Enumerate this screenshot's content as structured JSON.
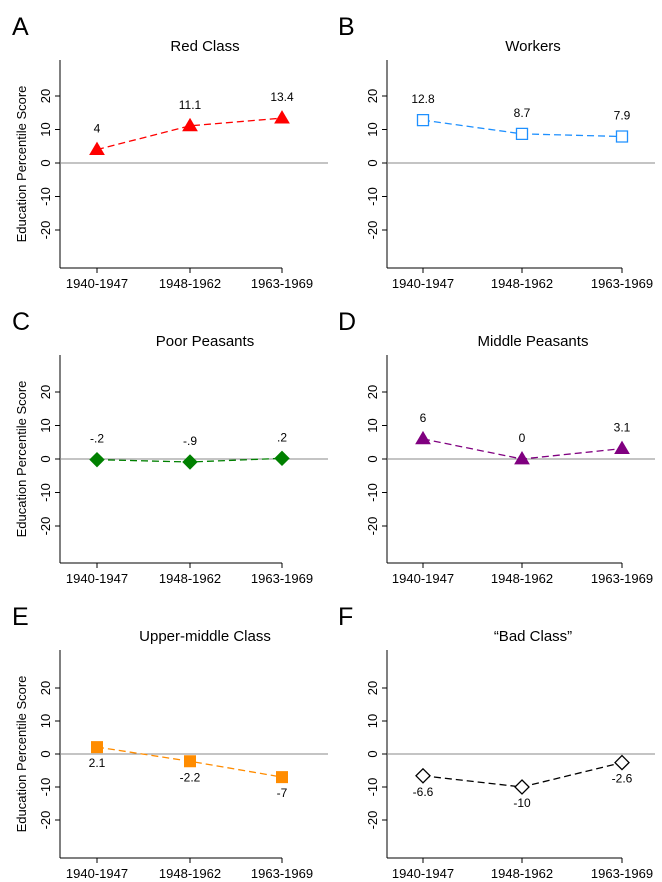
{
  "ylabel": "Education Percentile Score",
  "chart_data": [
    {
      "type": "line",
      "panel": "A",
      "title": "Red Class",
      "ylabel": "Education Percentile Score",
      "categories": [
        "1940-1947",
        "1948-1962",
        "1963-1969"
      ],
      "series": [
        {
          "values": [
            4,
            11.1,
            13.4
          ]
        }
      ],
      "value_labels": [
        "4",
        "11.1",
        "13.4"
      ],
      "label_position": "above",
      "yticks": [
        20,
        10,
        0,
        -10,
        -20
      ],
      "ylim": [
        -31,
        31
      ],
      "reference_line": 0,
      "marker": "triangle-filled",
      "color": "#ff0000",
      "line_style": "dashed"
    },
    {
      "type": "line",
      "panel": "B",
      "title": "Workers",
      "categories": [
        "1940-1947",
        "1948-1962",
        "1963-1969"
      ],
      "series": [
        {
          "values": [
            12.8,
            8.7,
            7.9
          ]
        }
      ],
      "value_labels": [
        "12.8",
        "8.7",
        "7.9"
      ],
      "label_position": "above",
      "yticks": [
        20,
        10,
        0,
        -10,
        -20
      ],
      "ylim": [
        -31,
        31
      ],
      "reference_line": 0,
      "marker": "square-hollow",
      "color": "#1e90ff",
      "line_style": "dashed"
    },
    {
      "type": "line",
      "panel": "C",
      "title": "Poor Peasants",
      "ylabel": "Education Percentile Score",
      "categories": [
        "1940-1947",
        "1948-1962",
        "1963-1969"
      ],
      "series": [
        {
          "values": [
            -0.2,
            -0.9,
            0.2
          ]
        }
      ],
      "value_labels": [
        "-.2",
        "-.9",
        ".2"
      ],
      "label_position": "above",
      "yticks": [
        20,
        10,
        0,
        -10,
        -20
      ],
      "ylim": [
        -31,
        31
      ],
      "reference_line": 0,
      "marker": "diamond-filled",
      "color": "#008000",
      "line_style": "dashed"
    },
    {
      "type": "line",
      "panel": "D",
      "title": "Middle Peasants",
      "categories": [
        "1940-1947",
        "1948-1962",
        "1963-1969"
      ],
      "series": [
        {
          "values": [
            6,
            0,
            3.1
          ]
        }
      ],
      "value_labels": [
        "6",
        "0",
        "3.1"
      ],
      "label_position": "above",
      "yticks": [
        20,
        10,
        0,
        -10,
        -20
      ],
      "ylim": [
        -31,
        31
      ],
      "reference_line": 0,
      "marker": "triangle-filled",
      "color": "#800080",
      "line_style": "dashed"
    },
    {
      "type": "line",
      "panel": "E",
      "title": "Upper-middle Class",
      "ylabel": "Education Percentile Score",
      "categories": [
        "1940-1947",
        "1948-1962",
        "1963-1969"
      ],
      "series": [
        {
          "values": [
            2.1,
            -2.2,
            -7
          ]
        }
      ],
      "value_labels": [
        "2.1",
        "-2.2",
        "-7"
      ],
      "label_position": "below",
      "yticks": [
        20,
        10,
        0,
        -10,
        -20
      ],
      "ylim": [
        -31,
        31
      ],
      "reference_line": 0,
      "marker": "square-filled",
      "color": "#ff8c00",
      "line_style": "dashed"
    },
    {
      "type": "line",
      "panel": "F",
      "title": "“Bad Class”",
      "categories": [
        "1940-1947",
        "1948-1962",
        "1963-1969"
      ],
      "series": [
        {
          "values": [
            -6.6,
            -10,
            -2.6
          ]
        }
      ],
      "value_labels": [
        "-6.6",
        "-10",
        "-2.6"
      ],
      "label_position": "below",
      "yticks": [
        20,
        10,
        0,
        -10,
        -20
      ],
      "ylim": [
        -31,
        31
      ],
      "reference_line": 0,
      "marker": "diamond-hollow",
      "color": "#000000",
      "line_style": "dashed"
    }
  ]
}
